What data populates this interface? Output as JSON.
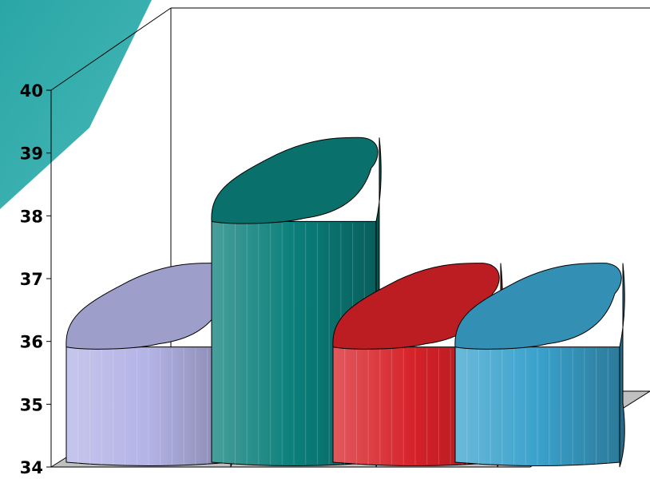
{
  "chart_data": {
    "type": "bar",
    "style": "3d-cylinder",
    "categories": [
      "",
      "",
      "",
      ""
    ],
    "values": [
      36,
      38,
      36,
      36
    ],
    "colors": {
      "bars": [
        "#b3b3e6",
        "#0b7f7a",
        "#d62128",
        "#3aa2cc"
      ],
      "accent": "#2aa6a6",
      "floor": "#c0c0c0"
    },
    "title": "",
    "xlabel": "",
    "ylabel": "",
    "ylim": [
      34,
      40
    ],
    "y_ticks": [
      "34",
      "35",
      "36",
      "37",
      "38",
      "39",
      "40"
    ],
    "grid": false,
    "legend": "none"
  }
}
